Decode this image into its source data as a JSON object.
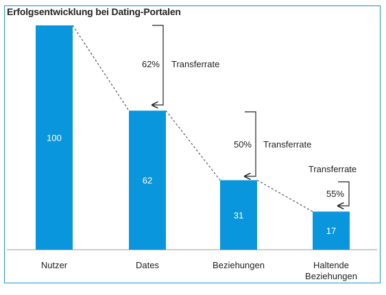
{
  "title": "Erfolgsentwicklung bei Dating-Portalen",
  "chart_data": {
    "type": "bar",
    "title": "Erfolgsentwicklung bei Dating-Portalen",
    "categories": [
      "Nutzer",
      "Dates",
      "Beziehungen",
      "Haltende Beziehungen"
    ],
    "category_lines": [
      [
        "Nutzer"
      ],
      [
        "Dates"
      ],
      [
        "Beziehungen"
      ],
      [
        "Haltende",
        "Beziehungen"
      ]
    ],
    "values": [
      100,
      62,
      31,
      17
    ],
    "ylim": [
      0,
      100
    ],
    "grid": false,
    "bar_color": "#0a96dc",
    "transfers": [
      {
        "pct": "62%",
        "label": "Transferrate"
      },
      {
        "pct": "50%",
        "label": "Transferrate"
      },
      {
        "pct": "55%",
        "label": "Transferrate"
      }
    ]
  }
}
